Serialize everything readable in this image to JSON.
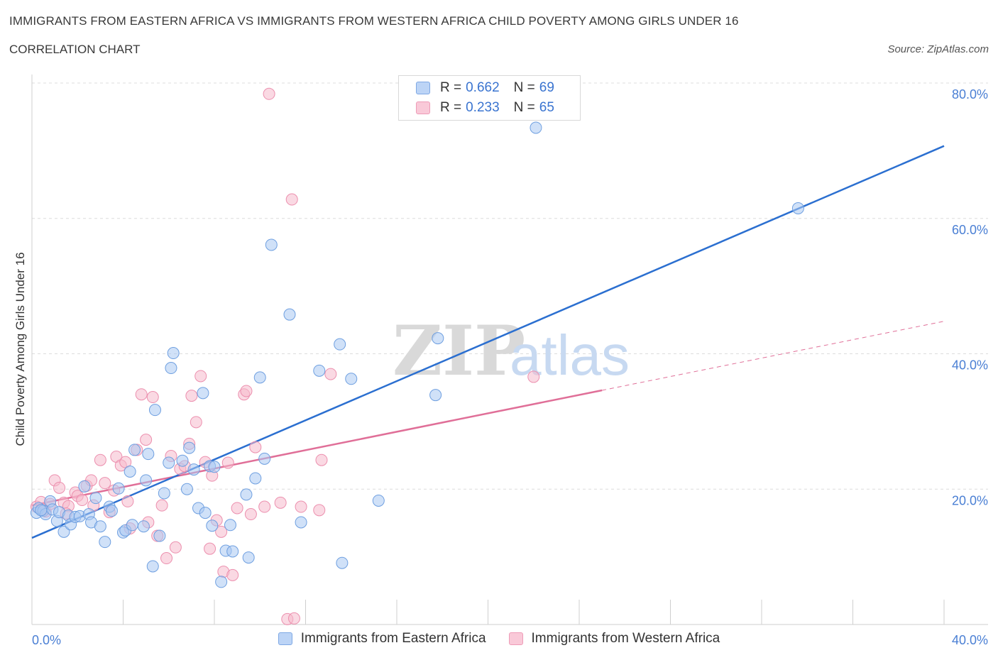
{
  "header": {
    "title": "IMMIGRANTS FROM EASTERN AFRICA VS IMMIGRANTS FROM WESTERN AFRICA CHILD POVERTY AMONG GIRLS UNDER 16",
    "subtitle": "CORRELATION CHART",
    "source": "Source: ZipAtlas.com"
  },
  "watermark": {
    "zip": "ZIP",
    "atlas": "atlas"
  },
  "legend": {
    "rows": [
      {
        "r_label": "R =",
        "r_value": "0.662",
        "n_label": "N =",
        "n_value": "69",
        "color": "#a9c8f2"
      },
      {
        "r_label": "R =",
        "r_value": "0.233",
        "n_label": "N =",
        "n_value": "65",
        "color": "#f6b9cc"
      }
    ]
  },
  "bottom_legend": {
    "items": [
      {
        "label": "Immigrants from Eastern Africa",
        "color": "#a9c8f2"
      },
      {
        "label": "Immigrants from Western Africa",
        "color": "#f6b9cc"
      }
    ]
  },
  "colors": {
    "blue_fill": "#a9c8f2",
    "blue_stroke": "#6e9fe0",
    "blue_line": "#2b6fd0",
    "pink_fill": "#f6b9cc",
    "pink_stroke": "#ec8fae",
    "pink_line": "#e06f98",
    "grid": "#dcdcdc",
    "tick_text": "#4a7fd4"
  },
  "chart_data": {
    "type": "scatter",
    "title": "IMMIGRANTS FROM EASTERN AFRICA VS IMMIGRANTS FROM WESTERN AFRICA CHILD POVERTY AMONG GIRLS UNDER 16",
    "xlabel": "",
    "ylabel": "Child Poverty Among Girls Under 16",
    "xlim": [
      0,
      40
    ],
    "ylim": [
      0,
      80
    ],
    "x_tick_labels": [
      "0.0%",
      "40.0%"
    ],
    "y_ticks": [
      20,
      40,
      60,
      80
    ],
    "y_tick_labels": [
      "20.0%",
      "40.0%",
      "60.0%",
      "80.0%"
    ],
    "grid": true,
    "legend_position": "top-center",
    "series": [
      {
        "name": "Immigrants from Eastern Africa",
        "color": "#a9c8f2",
        "trend": {
          "x": [
            0,
            40
          ],
          "y": [
            12.8,
            70.7
          ]
        },
        "points": [
          [
            0.2,
            16.5
          ],
          [
            0.3,
            17.2
          ],
          [
            0.5,
            16.8
          ],
          [
            0.6,
            16.3
          ],
          [
            0.8,
            18.2
          ],
          [
            0.9,
            17.0
          ],
          [
            1.1,
            15.3
          ],
          [
            1.2,
            16.6
          ],
          [
            1.4,
            13.7
          ],
          [
            1.6,
            16.1
          ],
          [
            1.7,
            14.8
          ],
          [
            1.9,
            15.9
          ],
          [
            2.1,
            16.0
          ],
          [
            2.3,
            20.4
          ],
          [
            2.5,
            16.3
          ],
          [
            2.6,
            15.1
          ],
          [
            2.8,
            18.7
          ],
          [
            3.0,
            14.5
          ],
          [
            3.2,
            12.2
          ],
          [
            3.4,
            17.4
          ],
          [
            3.5,
            16.8
          ],
          [
            3.8,
            20.1
          ],
          [
            4.0,
            13.6
          ],
          [
            4.1,
            13.9
          ],
          [
            4.3,
            22.6
          ],
          [
            4.4,
            14.7
          ],
          [
            4.5,
            25.8
          ],
          [
            4.9,
            14.5
          ],
          [
            5.0,
            21.3
          ],
          [
            5.1,
            25.2
          ],
          [
            5.3,
            8.6
          ],
          [
            5.4,
            31.7
          ],
          [
            5.6,
            13.1
          ],
          [
            5.8,
            19.4
          ],
          [
            6.0,
            23.9
          ],
          [
            6.1,
            37.9
          ],
          [
            6.2,
            40.1
          ],
          [
            6.6,
            24.2
          ],
          [
            6.8,
            20.0
          ],
          [
            6.9,
            26.1
          ],
          [
            7.1,
            22.9
          ],
          [
            7.3,
            17.2
          ],
          [
            7.5,
            34.2
          ],
          [
            7.6,
            16.5
          ],
          [
            7.8,
            23.4
          ],
          [
            7.9,
            14.6
          ],
          [
            8.0,
            23.3
          ],
          [
            8.3,
            6.3
          ],
          [
            8.5,
            10.9
          ],
          [
            8.7,
            14.7
          ],
          [
            8.8,
            10.8
          ],
          [
            9.4,
            19.2
          ],
          [
            9.5,
            9.9
          ],
          [
            9.8,
            21.6
          ],
          [
            10.0,
            36.5
          ],
          [
            10.2,
            24.5
          ],
          [
            10.5,
            56.1
          ],
          [
            11.3,
            45.8
          ],
          [
            11.8,
            15.1
          ],
          [
            12.6,
            37.5
          ],
          [
            13.5,
            41.4
          ],
          [
            13.6,
            9.1
          ],
          [
            14.0,
            36.3
          ],
          [
            15.2,
            18.3
          ],
          [
            17.7,
            33.9
          ],
          [
            17.8,
            42.3
          ],
          [
            22.1,
            73.4
          ],
          [
            33.6,
            61.5
          ],
          [
            0.4,
            16.9
          ]
        ]
      },
      {
        "name": "Immigrants from Western Africa",
        "color": "#f6b9cc",
        "trend": {
          "x": [
            0,
            25.0
          ],
          "y": [
            17.6,
            34.6
          ]
        },
        "trend_dashed": {
          "x": [
            25.0,
            40
          ],
          "y": [
            34.6,
            44.8
          ]
        },
        "points": [
          [
            0.2,
            17.4
          ],
          [
            0.4,
            18.1
          ],
          [
            0.6,
            16.7
          ],
          [
            0.8,
            17.8
          ],
          [
            1.0,
            21.3
          ],
          [
            1.2,
            20.2
          ],
          [
            1.4,
            18.0
          ],
          [
            1.6,
            17.5
          ],
          [
            1.9,
            19.5
          ],
          [
            2.0,
            19.0
          ],
          [
            2.2,
            18.4
          ],
          [
            2.4,
            20.5
          ],
          [
            2.6,
            21.3
          ],
          [
            2.7,
            17.6
          ],
          [
            3.0,
            24.3
          ],
          [
            3.2,
            20.9
          ],
          [
            3.4,
            16.6
          ],
          [
            3.6,
            19.8
          ],
          [
            3.7,
            24.8
          ],
          [
            3.9,
            23.5
          ],
          [
            4.1,
            24.0
          ],
          [
            4.2,
            18.2
          ],
          [
            4.3,
            14.2
          ],
          [
            4.6,
            25.8
          ],
          [
            4.8,
            34.0
          ],
          [
            5.0,
            27.3
          ],
          [
            5.1,
            15.1
          ],
          [
            5.3,
            33.6
          ],
          [
            5.5,
            13.1
          ],
          [
            5.7,
            17.6
          ],
          [
            5.9,
            9.8
          ],
          [
            6.1,
            24.9
          ],
          [
            6.3,
            11.4
          ],
          [
            6.5,
            23.0
          ],
          [
            6.7,
            23.4
          ],
          [
            6.9,
            26.7
          ],
          [
            7.0,
            33.8
          ],
          [
            7.2,
            29.9
          ],
          [
            7.4,
            36.7
          ],
          [
            7.6,
            24.0
          ],
          [
            7.8,
            11.2
          ],
          [
            7.9,
            22.0
          ],
          [
            8.1,
            15.4
          ],
          [
            8.3,
            13.7
          ],
          [
            8.4,
            7.8
          ],
          [
            8.6,
            23.9
          ],
          [
            8.8,
            7.3
          ],
          [
            9.0,
            17.2
          ],
          [
            9.3,
            34.0
          ],
          [
            9.4,
            34.5
          ],
          [
            9.6,
            16.3
          ],
          [
            9.8,
            26.2
          ],
          [
            10.2,
            17.4
          ],
          [
            10.4,
            78.4
          ],
          [
            10.9,
            18.0
          ],
          [
            11.2,
            0.8
          ],
          [
            11.4,
            62.8
          ],
          [
            11.5,
            0.9
          ],
          [
            11.8,
            17.4
          ],
          [
            12.6,
            16.9
          ],
          [
            12.7,
            24.3
          ],
          [
            13.1,
            37.0
          ],
          [
            22.0,
            36.6
          ],
          [
            0.5,
            17.0
          ],
          [
            1.5,
            16.4
          ]
        ]
      }
    ]
  }
}
